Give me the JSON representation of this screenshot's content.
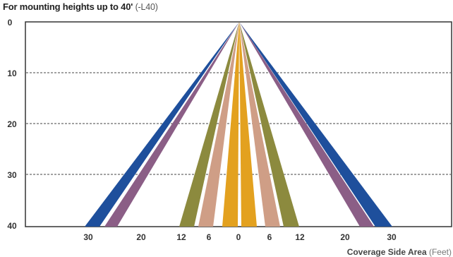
{
  "title": {
    "main": "For mounting heights up to 40'",
    "suffix": "(-L40)"
  },
  "footer": {
    "label": "Coverage Side Area",
    "unit": "(Feet)"
  },
  "y_ticks": [
    "0",
    "10",
    "20",
    "30",
    "40"
  ],
  "x_ticks": [
    "30",
    "20",
    "12",
    "6",
    "0",
    "6",
    "12",
    "20",
    "30"
  ],
  "depth_range": [
    0,
    40
  ],
  "beams": [
    {
      "name": "center",
      "color": "#e3a11f",
      "coverage_ft": 0
    },
    {
      "name": "6ft",
      "color": "#cf9e86",
      "coverage_ft": 6
    },
    {
      "name": "12ft",
      "color": "#8c8a3e",
      "coverage_ft": 12
    },
    {
      "name": "20ft",
      "color": "#8b5e86",
      "coverage_ft": 20
    },
    {
      "name": "30ft",
      "color": "#1e4f9c",
      "coverage_ft": 30
    }
  ]
}
